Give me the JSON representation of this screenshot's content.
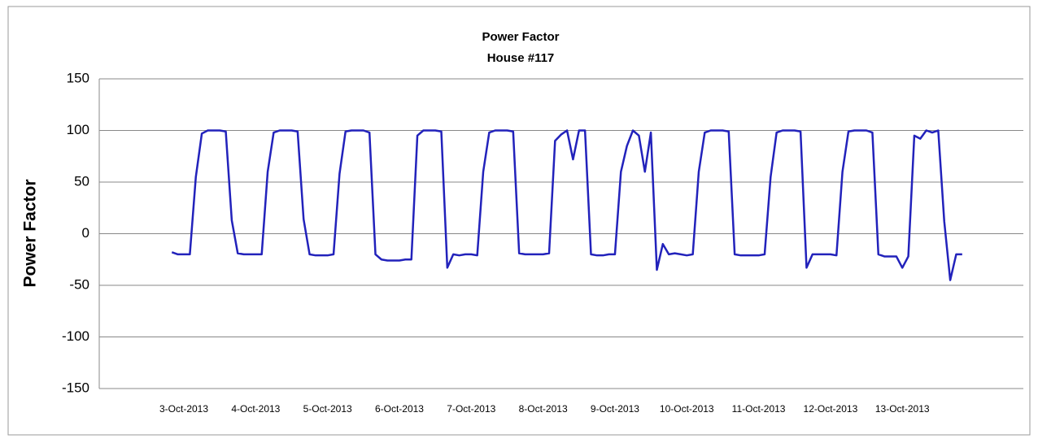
{
  "chart_data": {
    "type": "line",
    "title": "Power Factor",
    "subtitle": "House #117",
    "y_label": "Power Factor",
    "color": "#2222bb",
    "grid": true,
    "ylim": [
      -150,
      150
    ],
    "yticks": [
      -150,
      -100,
      -50,
      0,
      50,
      100,
      150
    ],
    "categories": [
      null,
      null,
      "3-Oct-2013",
      null,
      null,
      null,
      null,
      null,
      null,
      null,
      null,
      null,
      null,
      null,
      "4-Oct-2013",
      null,
      null,
      null,
      null,
      null,
      null,
      null,
      null,
      null,
      null,
      null,
      "5-Oct-2013",
      null,
      null,
      null,
      null,
      null,
      null,
      null,
      null,
      null,
      null,
      null,
      "6-Oct-2013",
      null,
      null,
      null,
      null,
      null,
      null,
      null,
      null,
      null,
      null,
      null,
      "7-Oct-2013",
      null,
      null,
      null,
      null,
      null,
      null,
      null,
      null,
      null,
      null,
      null,
      "8-Oct-2013",
      null,
      null,
      null,
      null,
      null,
      null,
      null,
      null,
      null,
      null,
      null,
      "9-Oct-2013",
      null,
      null,
      null,
      null,
      null,
      null,
      null,
      null,
      null,
      null,
      null,
      "10-Oct-2013",
      null,
      null,
      null,
      null,
      null,
      null,
      null,
      null,
      null,
      null,
      null,
      "11-Oct-2013",
      null,
      null,
      null,
      null,
      null,
      null,
      null,
      null,
      null,
      null,
      null,
      "12-Oct-2013",
      null,
      null,
      null,
      null,
      null,
      null,
      null,
      null,
      null,
      null,
      null,
      "13-Oct-2013",
      null,
      null,
      null,
      null,
      null,
      null,
      null,
      null,
      null,
      null
    ],
    "values": [
      -18,
      -20,
      -20,
      -20,
      55,
      97,
      100,
      100,
      100,
      99,
      13,
      -19,
      -20,
      -20,
      -20,
      -20,
      60,
      98,
      100,
      100,
      100,
      99,
      14,
      -20,
      -21,
      -21,
      -21,
      -20,
      58,
      99,
      100,
      100,
      100,
      98,
      -20,
      -25,
      -26,
      -26,
      -26,
      -25,
      -25,
      95,
      100,
      100,
      100,
      99,
      -33,
      -20,
      -21,
      -20,
      -20,
      -21,
      60,
      98,
      100,
      100,
      100,
      99,
      -19,
      -20,
      -20,
      -20,
      -20,
      -19,
      90,
      96,
      100,
      72,
      100,
      100,
      -20,
      -21,
      -21,
      -20,
      -20,
      60,
      85,
      100,
      95,
      60,
      98,
      -35,
      -10,
      -20,
      -19,
      -20,
      -21,
      -20,
      60,
      98,
      100,
      100,
      100,
      99,
      -20,
      -21,
      -21,
      -21,
      -21,
      -20,
      55,
      98,
      100,
      100,
      100,
      99,
      -33,
      -20,
      -20,
      -20,
      -20,
      -21,
      60,
      99,
      100,
      100,
      100,
      98,
      -20,
      -22,
      -22,
      -22,
      -33,
      -22,
      95,
      92,
      100,
      98,
      100,
      12,
      -45,
      -20,
      -20
    ]
  }
}
